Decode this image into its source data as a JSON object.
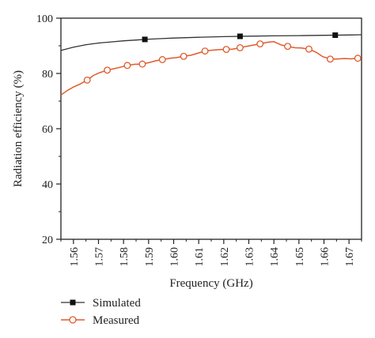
{
  "chart_data": {
    "type": "line",
    "title": "",
    "xlabel": "Frequency (GHz)",
    "ylabel": "Radiation efficiency (%)",
    "xlim": [
      1.555,
      1.675
    ],
    "ylim": [
      20,
      100
    ],
    "x_ticks": [
      "1.56",
      "1.57",
      "1.58",
      "1.59",
      "1.60",
      "1.61",
      "1.62",
      "1.63",
      "1.64",
      "1.65",
      "1.66",
      "1.67"
    ],
    "y_ticks": [
      "20",
      "40",
      "60",
      "80",
      "100"
    ],
    "grid": false,
    "legend_position": "bottom-left",
    "series": [
      {
        "name": "Simulated",
        "color": "#333333",
        "marker": "square",
        "marker_x": [
          1.5885,
          1.6265,
          1.6645
        ],
        "x": [
          1.555,
          1.56,
          1.565,
          1.57,
          1.575,
          1.58,
          1.585,
          1.59,
          1.595,
          1.6,
          1.61,
          1.62,
          1.63,
          1.64,
          1.65,
          1.66,
          1.67,
          1.675
        ],
        "y": [
          88.3,
          89.5,
          90.4,
          91.0,
          91.4,
          91.8,
          92.1,
          92.4,
          92.6,
          92.8,
          93.1,
          93.3,
          93.5,
          93.6,
          93.7,
          93.8,
          93.9,
          94.0
        ]
      },
      {
        "name": "Measured",
        "color": "#e05a2b",
        "marker": "circle-open",
        "line_x": [
          1.555,
          1.5575,
          1.56,
          1.5625,
          1.5655,
          1.568,
          1.5705,
          1.5735,
          1.576,
          1.5785,
          1.5815,
          1.5845,
          1.5875,
          1.5905,
          1.593,
          1.5955,
          1.5985,
          1.601,
          1.604,
          1.607,
          1.6095,
          1.6125,
          1.615,
          1.618,
          1.621,
          1.6235,
          1.6265,
          1.629,
          1.632,
          1.6345,
          1.6375,
          1.64,
          1.643,
          1.6455,
          1.6485,
          1.651,
          1.654,
          1.657,
          1.6595,
          1.6625,
          1.665,
          1.668,
          1.671,
          1.6735
        ],
        "line_y": [
          72.2,
          73.8,
          75.1,
          76.1,
          77.6,
          79.3,
          80.3,
          81.2,
          81.7,
          82.2,
          82.9,
          83.3,
          83.4,
          84.0,
          84.6,
          85.0,
          85.5,
          85.7,
          86.2,
          86.6,
          87.3,
          88.1,
          88.4,
          88.6,
          88.7,
          88.8,
          89.3,
          89.8,
          90.3,
          90.7,
          91.3,
          91.5,
          90.3,
          89.8,
          89.3,
          89.2,
          88.8,
          87.6,
          86.1,
          85.2,
          85.2,
          85.4,
          85.3,
          85.5
        ],
        "marker_x": [
          1.5655,
          1.5735,
          1.5815,
          1.5875,
          1.5955,
          1.604,
          1.6125,
          1.621,
          1.6265,
          1.6345,
          1.6455,
          1.654,
          1.6625,
          1.6735
        ],
        "marker_y": [
          77.6,
          81.2,
          82.9,
          83.4,
          85.0,
          86.2,
          88.1,
          88.7,
          89.3,
          90.7,
          89.8,
          88.8,
          85.2,
          85.5
        ]
      }
    ]
  }
}
